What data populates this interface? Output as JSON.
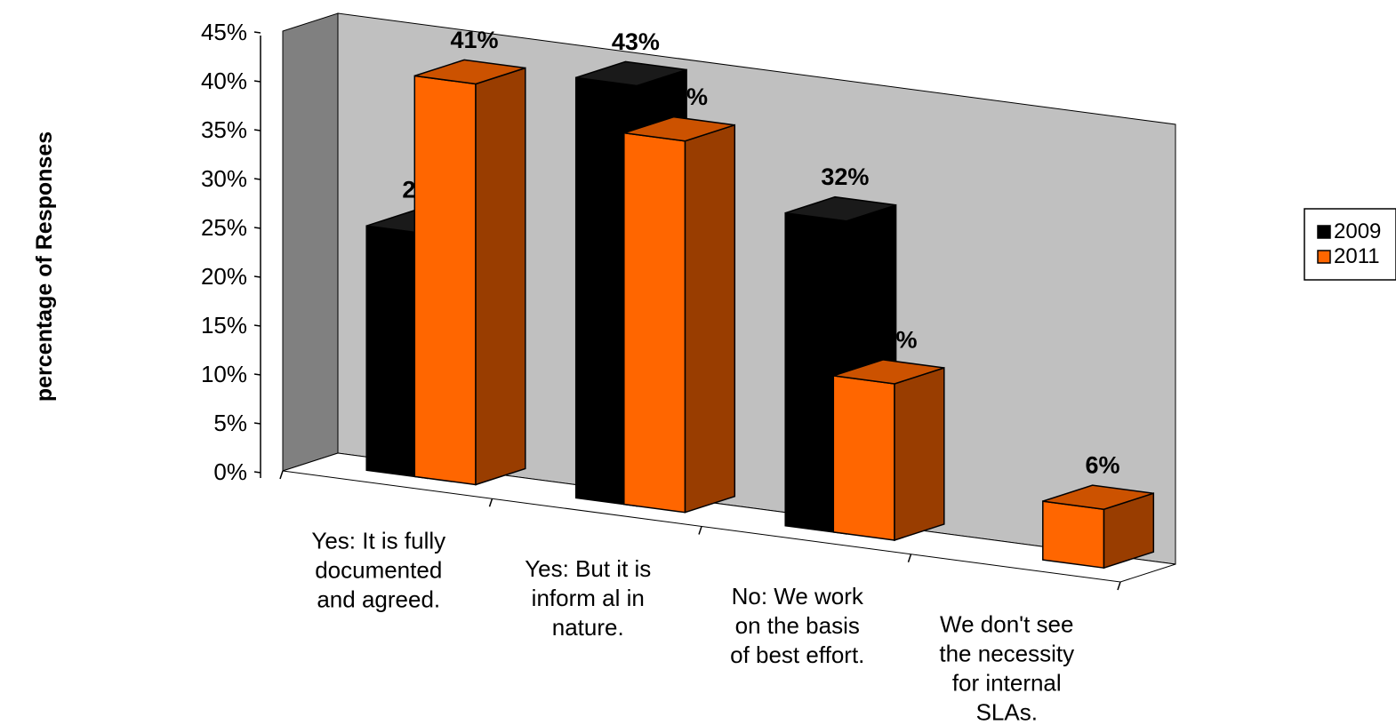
{
  "chart_data": {
    "type": "bar",
    "style": "3d-clustered-column",
    "ylabel": "percentage of Responses",
    "xlabel": "",
    "ylim": [
      0,
      45
    ],
    "y_ticks": [
      "0%",
      "5%",
      "10%",
      "15%",
      "20%",
      "25%",
      "30%",
      "35%",
      "40%",
      "45%"
    ],
    "grid": false,
    "legend_position": "right",
    "categories": [
      [
        "Yes:  It is fully",
        "documented",
        "and agreed."
      ],
      [
        "Yes: But it is",
        "inform al in",
        "nature."
      ],
      [
        "No: We work",
        "on the basis",
        "of best effort."
      ],
      [
        "We don't see",
        "the necessity",
        "for internal",
        "SLAs."
      ]
    ],
    "series": [
      {
        "name": "2009",
        "color": "#000000",
        "values": [
          25,
          43,
          32,
          null
        ],
        "labels": [
          "25%",
          "43%",
          "32%",
          ""
        ]
      },
      {
        "name": "2011",
        "color": "#ff6600",
        "values": [
          41,
          38,
          16,
          6
        ],
        "labels": [
          "41%",
          "38%",
          "16%",
          "6%"
        ]
      }
    ],
    "colors": {
      "wall": "#c0c0c0",
      "side_wall": "#808080",
      "orange_side": "#993d00",
      "orange_top": "#cc5200",
      "black_side": "#000000"
    }
  }
}
